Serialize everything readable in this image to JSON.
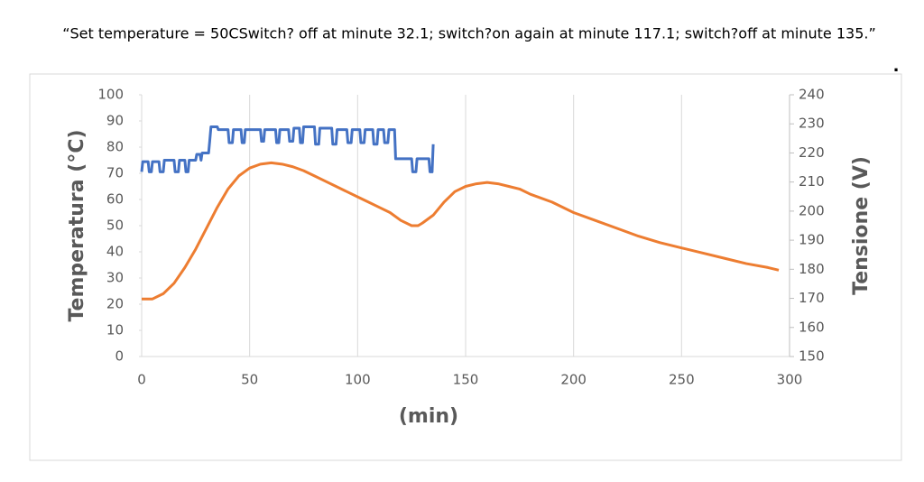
{
  "caption": "“Set temperature = 50CSwitch? off at minute 32.1; switch?on again at minute 117.1; switch?off at minute 135.”",
  "note": ".",
  "chart_data": {
    "type": "line",
    "xlabel": "(min)",
    "ylabel": "Temperatura (°C)",
    "y2label": "Tensione (V)",
    "xlim": [
      0,
      300
    ],
    "xticks": [
      0,
      50,
      100,
      150,
      200,
      250,
      300
    ],
    "ylim": [
      0,
      100
    ],
    "yticks": [
      0,
      10,
      20,
      30,
      40,
      50,
      60,
      70,
      80,
      90,
      100
    ],
    "y2lim": [
      150,
      240
    ],
    "y2ticks": [
      150,
      160,
      170,
      180,
      190,
      200,
      210,
      220,
      230,
      240
    ],
    "grid": "x",
    "series": [
      {
        "color": "#ed7d31",
        "axis": "y",
        "x": [
          0,
          5,
          10,
          15,
          20,
          25,
          30,
          35,
          40,
          45,
          50,
          55,
          60,
          65,
          70,
          75,
          80,
          85,
          90,
          95,
          100,
          105,
          110,
          115,
          120,
          125,
          128,
          130,
          135,
          140,
          145,
          150,
          155,
          160,
          165,
          170,
          175,
          180,
          190,
          200,
          210,
          220,
          230,
          240,
          250,
          260,
          270,
          280,
          290,
          295
        ],
        "values": [
          22,
          22,
          24,
          28,
          34,
          41,
          49,
          57,
          64,
          69,
          72,
          73.5,
          74,
          73.5,
          72.5,
          71,
          69,
          67,
          65,
          63,
          61,
          59,
          57,
          55,
          52,
          50,
          50,
          51,
          54,
          59,
          63,
          65,
          66,
          66.5,
          66,
          65,
          64,
          62,
          59,
          55,
          52,
          49,
          46,
          43.5,
          41.5,
          39.5,
          37.5,
          35.5,
          34,
          33
        ]
      },
      {
        "color": "#4472c4",
        "axis": "y2",
        "x": [
          0,
          0.5,
          3,
          3.5,
          4.5,
          5,
          8,
          8.5,
          10,
          10.5,
          15,
          15.5,
          17,
          17.5,
          20,
          20.5,
          21.5,
          22,
          25,
          25.5,
          27,
          27.5,
          28,
          31,
          31.5,
          32.1,
          35,
          35.5,
          40,
          40.5,
          42,
          42.5,
          46,
          46.5,
          47.5,
          48,
          55,
          55.5,
          56.5,
          57,
          62,
          62.5,
          63.5,
          64,
          68,
          68.5,
          70,
          70.5,
          73,
          73.5,
          74.5,
          75,
          80,
          80.5,
          82,
          82.5,
          88,
          88.5,
          90,
          90.5,
          95,
          95.5,
          97,
          97.5,
          101,
          101.5,
          103,
          103.5,
          107,
          107.5,
          109,
          109.5,
          112,
          112.5,
          114,
          114.5,
          117.1,
          117.6,
          125,
          125.5,
          127,
          127.5,
          133,
          133.5,
          134.5,
          135
        ],
        "values": [
          213.5,
          217,
          217,
          213.5,
          213.5,
          217,
          217,
          213.5,
          213.5,
          217.5,
          217.5,
          213.5,
          213.5,
          217.5,
          217.5,
          213.5,
          213.5,
          217.5,
          217.5,
          219.5,
          219.5,
          217.5,
          220,
          220,
          224,
          229,
          229,
          228,
          228,
          223.5,
          223.5,
          228,
          228,
          223.5,
          223.5,
          228,
          228,
          224,
          224,
          228,
          228,
          223.5,
          223.5,
          228,
          228,
          224,
          224,
          228.5,
          228.5,
          223.5,
          223.5,
          229,
          229,
          223,
          223,
          228.5,
          228.5,
          223,
          223,
          228,
          228,
          223.5,
          223.5,
          228,
          228,
          223.5,
          223.5,
          228,
          228,
          223,
          223,
          228,
          228,
          223.5,
          223.5,
          228,
          228,
          218,
          218,
          213.5,
          213.5,
          218,
          218,
          213.5,
          213.5,
          223
        ]
      }
    ]
  }
}
